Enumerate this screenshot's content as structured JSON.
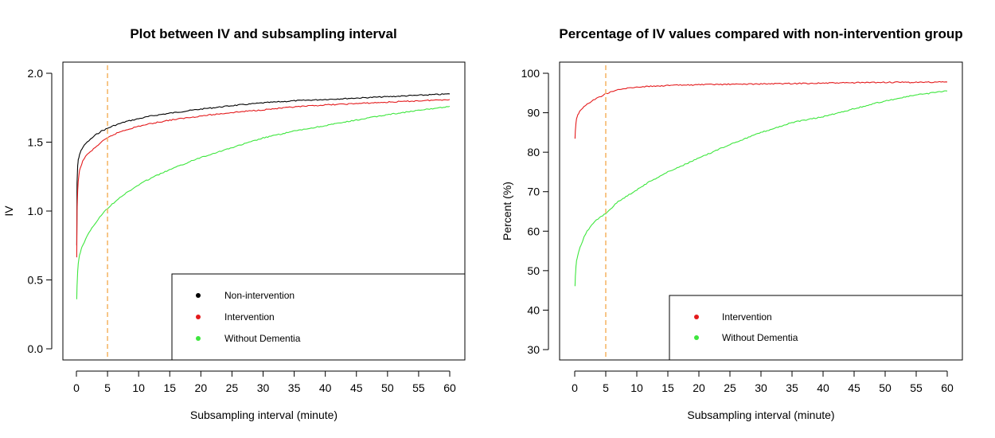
{
  "chart_data": [
    {
      "type": "line",
      "title": "Plot between IV and subsampling interval",
      "xlabel": "Subsampling interval (minute)",
      "ylabel": "IV",
      "xlim": [
        0,
        60
      ],
      "ylim": [
        0,
        2
      ],
      "xticks": [
        0,
        5,
        10,
        15,
        20,
        25,
        30,
        35,
        40,
        45,
        50,
        55,
        60
      ],
      "yticks": [
        0,
        0.5,
        1,
        1.5,
        2
      ],
      "ytick_labels": [
        "0.0",
        "0.5",
        "1.0",
        "1.5",
        "2.0"
      ],
      "vline": {
        "x": 5,
        "color": "#f5b86a"
      },
      "legend_position": "bottom-right",
      "series": [
        {
          "name": "Non-intervention",
          "color": "#000000",
          "x": [
            0.05,
            0.1,
            0.2,
            0.3,
            0.5,
            0.75,
            1,
            1.5,
            2,
            3,
            4,
            5,
            6,
            7,
            8,
            10,
            12,
            15,
            20,
            25,
            30,
            35,
            40,
            45,
            50,
            55,
            60
          ],
          "values": [
            0.75,
            1.2,
            1.33,
            1.37,
            1.41,
            1.44,
            1.46,
            1.49,
            1.51,
            1.55,
            1.58,
            1.6,
            1.62,
            1.635,
            1.65,
            1.67,
            1.69,
            1.71,
            1.74,
            1.765,
            1.785,
            1.8,
            1.81,
            1.82,
            1.83,
            1.84,
            1.85
          ]
        },
        {
          "name": "Intervention",
          "color": "#e41a1c",
          "x": [
            0.05,
            0.1,
            0.2,
            0.3,
            0.5,
            0.75,
            1,
            1.5,
            2,
            3,
            4,
            5,
            6,
            7,
            8,
            10,
            12,
            15,
            20,
            25,
            30,
            35,
            40,
            45,
            50,
            55,
            60
          ],
          "values": [
            0.66,
            1.0,
            1.15,
            1.22,
            1.29,
            1.33,
            1.36,
            1.4,
            1.42,
            1.46,
            1.5,
            1.53,
            1.555,
            1.575,
            1.59,
            1.615,
            1.635,
            1.66,
            1.69,
            1.715,
            1.735,
            1.755,
            1.77,
            1.78,
            1.79,
            1.8,
            1.81
          ]
        },
        {
          "name": "Without Dementia",
          "color": "#3ee63e",
          "x": [
            0.05,
            0.1,
            0.2,
            0.3,
            0.5,
            0.75,
            1,
            1.5,
            2,
            3,
            4,
            5,
            6,
            7,
            8,
            10,
            12,
            15,
            20,
            25,
            30,
            35,
            40,
            45,
            50,
            55,
            60
          ],
          "values": [
            0.36,
            0.46,
            0.56,
            0.62,
            0.68,
            0.72,
            0.75,
            0.8,
            0.84,
            0.91,
            0.97,
            1.02,
            1.06,
            1.1,
            1.13,
            1.19,
            1.24,
            1.3,
            1.39,
            1.46,
            1.53,
            1.58,
            1.62,
            1.66,
            1.7,
            1.73,
            1.76
          ]
        }
      ]
    },
    {
      "type": "line",
      "title": "Percentage of IV values compared with non-intervention group",
      "xlabel": "Subsampling interval (minute)",
      "ylabel": "Percent (%)",
      "xlim": [
        0,
        60
      ],
      "ylim": [
        30,
        100
      ],
      "xticks": [
        0,
        5,
        10,
        15,
        20,
        25,
        30,
        35,
        40,
        45,
        50,
        55,
        60
      ],
      "yticks": [
        30,
        40,
        50,
        60,
        70,
        80,
        90,
        100
      ],
      "ytick_labels": [
        "30",
        "40",
        "50",
        "60",
        "70",
        "80",
        "90",
        "100"
      ],
      "vline": {
        "x": 5,
        "color": "#f5b86a"
      },
      "legend_position": "bottom-right",
      "series": [
        {
          "name": "Intervention",
          "color": "#e41a1c",
          "x": [
            0.05,
            0.1,
            0.2,
            0.3,
            0.5,
            0.75,
            1,
            1.5,
            2,
            3,
            4,
            5,
            6,
            7,
            8,
            9,
            10,
            12,
            15,
            20,
            25,
            30,
            35,
            40,
            45,
            50,
            55,
            60
          ],
          "values": [
            83.5,
            85.5,
            87.5,
            88.5,
            89.5,
            90.2,
            90.7,
            91.5,
            92.2,
            93.2,
            94.0,
            94.8,
            95.4,
            95.8,
            96.1,
            96.3,
            96.5,
            96.7,
            96.9,
            97.1,
            97.2,
            97.3,
            97.4,
            97.5,
            97.6,
            97.7,
            97.7,
            97.8
          ]
        },
        {
          "name": "Without Dementia",
          "color": "#3ee63e",
          "x": [
            0.05,
            0.1,
            0.2,
            0.3,
            0.5,
            0.75,
            1,
            1.5,
            2,
            3,
            4,
            5,
            6,
            7,
            8,
            10,
            12,
            15,
            20,
            25,
            30,
            35,
            40,
            45,
            50,
            55,
            60
          ],
          "values": [
            46,
            48.5,
            51,
            52.5,
            54,
            55.5,
            56.5,
            58.5,
            60,
            62,
            63.5,
            64.5,
            66,
            67.5,
            68.5,
            70.5,
            72.5,
            75,
            78.5,
            82,
            85,
            87.5,
            89,
            91,
            93,
            94.5,
            95.5
          ]
        }
      ]
    }
  ]
}
